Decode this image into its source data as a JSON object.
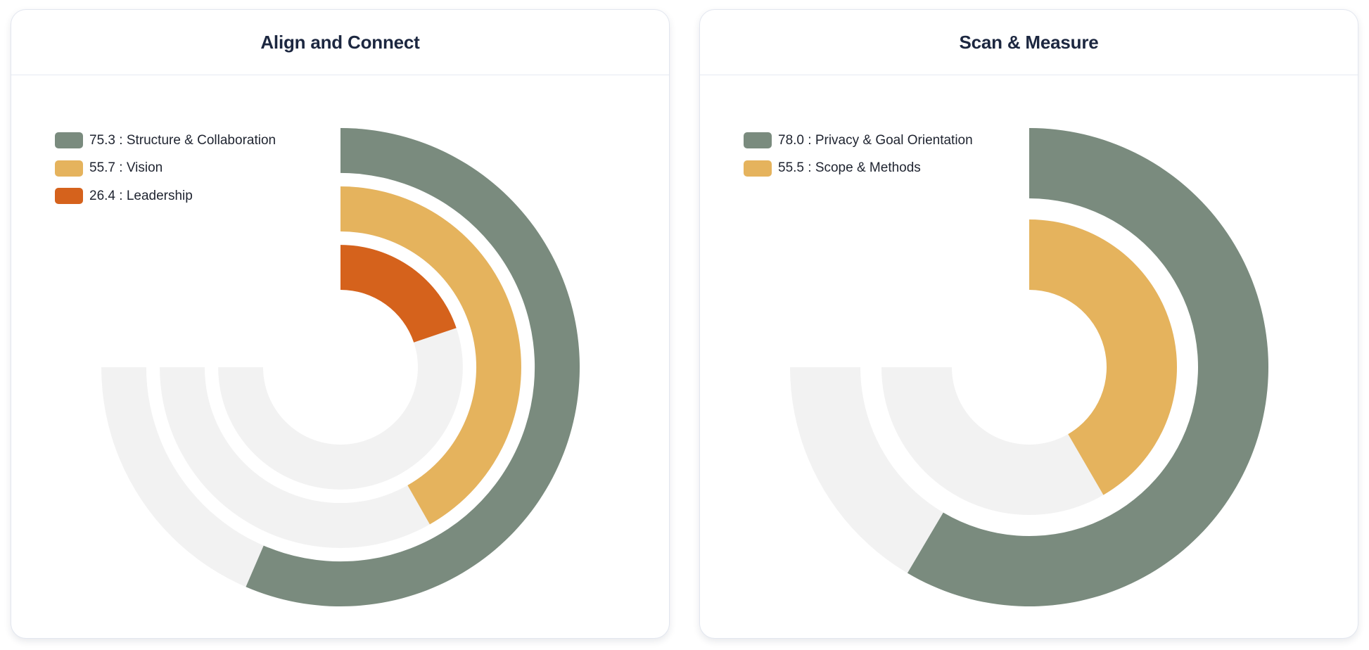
{
  "colors": {
    "track": "#f2f2f2",
    "series_1": "#7a8b7e",
    "series_2": "#e5b35d",
    "series_3": "#d5621c"
  },
  "charts": [
    {
      "title": "Align and Connect"
    },
    {
      "title": "Scan & Measure"
    }
  ],
  "chart_data": [
    {
      "type": "radial-bar",
      "title": "Align and Connect",
      "max": 100,
      "arc_extent_degrees": 270,
      "start_angle": "top",
      "legend_position": "top-left",
      "series": [
        {
          "name": "Structure & Collaboration",
          "value": 75.3,
          "label": "75.3 : Structure & Collaboration",
          "color": "#7a8b7e"
        },
        {
          "name": "Vision",
          "value": 55.7,
          "label": "55.7 : Vision",
          "color": "#e5b35d"
        },
        {
          "name": "Leadership",
          "value": 26.4,
          "label": "26.4 : Leadership",
          "color": "#d5621c"
        }
      ]
    },
    {
      "type": "radial-bar",
      "title": "Scan & Measure",
      "max": 100,
      "arc_extent_degrees": 270,
      "start_angle": "top",
      "legend_position": "top-left",
      "series": [
        {
          "name": "Privacy & Goal Orientation",
          "value": 78.0,
          "label": "78.0 : Privacy & Goal Orientation",
          "color": "#7a8b7e"
        },
        {
          "name": "Scope & Methods",
          "value": 55.5,
          "label": "55.5 : Scope & Methods",
          "color": "#e5b35d"
        }
      ]
    }
  ]
}
